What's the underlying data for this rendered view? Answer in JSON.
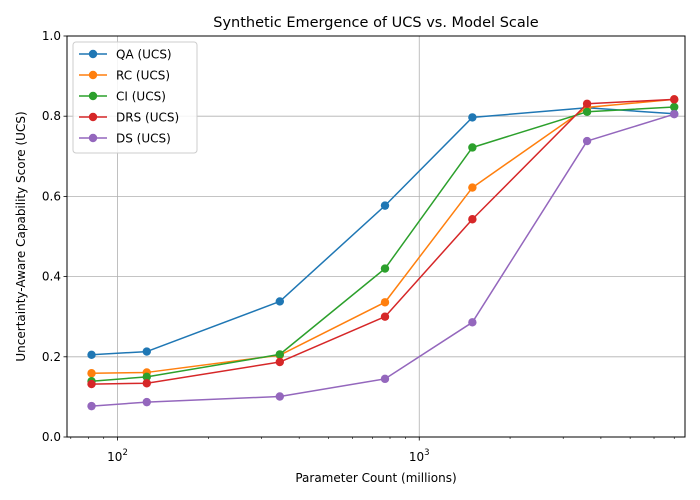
{
  "chart_data": {
    "type": "line",
    "title": "Synthetic Emergence of UCS vs. Model Scale",
    "xlabel": "Parameter Count (millions)",
    "ylabel": "Uncertainty-Aware Capability Score (UCS)",
    "xscale": "log",
    "xlim": [
      68,
      7600
    ],
    "ylim": [
      0,
      1.0
    ],
    "x_ticks": [
      {
        "value": 100,
        "base": "10",
        "exp": "2"
      },
      {
        "value": 1000,
        "base": "10",
        "exp": "3"
      }
    ],
    "y_ticks": [
      "0.0",
      "0.2",
      "0.4",
      "0.6",
      "0.8",
      "1.0"
    ],
    "grid": true,
    "legend_position": "top-left",
    "x": [
      82,
      125,
      345,
      770,
      1500,
      3600,
      7000
    ],
    "series": [
      {
        "name": "QA (UCS)",
        "color": "#1f77b4",
        "values": [
          0.205,
          0.213,
          0.338,
          0.577,
          0.797,
          0.821,
          0.806
        ]
      },
      {
        "name": "RC (UCS)",
        "color": "#ff7f0e",
        "values": [
          0.159,
          0.161,
          0.204,
          0.336,
          0.622,
          0.822,
          0.842
        ]
      },
      {
        "name": "CI (UCS)",
        "color": "#2ca02c",
        "values": [
          0.139,
          0.15,
          0.206,
          0.42,
          0.722,
          0.811,
          0.823
        ]
      },
      {
        "name": "DRS (UCS)",
        "color": "#d62728",
        "values": [
          0.132,
          0.134,
          0.187,
          0.3,
          0.543,
          0.831,
          0.842
        ]
      },
      {
        "name": "DS (UCS)",
        "color": "#9467bd",
        "values": [
          0.077,
          0.087,
          0.101,
          0.145,
          0.286,
          0.738,
          0.805
        ]
      }
    ]
  }
}
